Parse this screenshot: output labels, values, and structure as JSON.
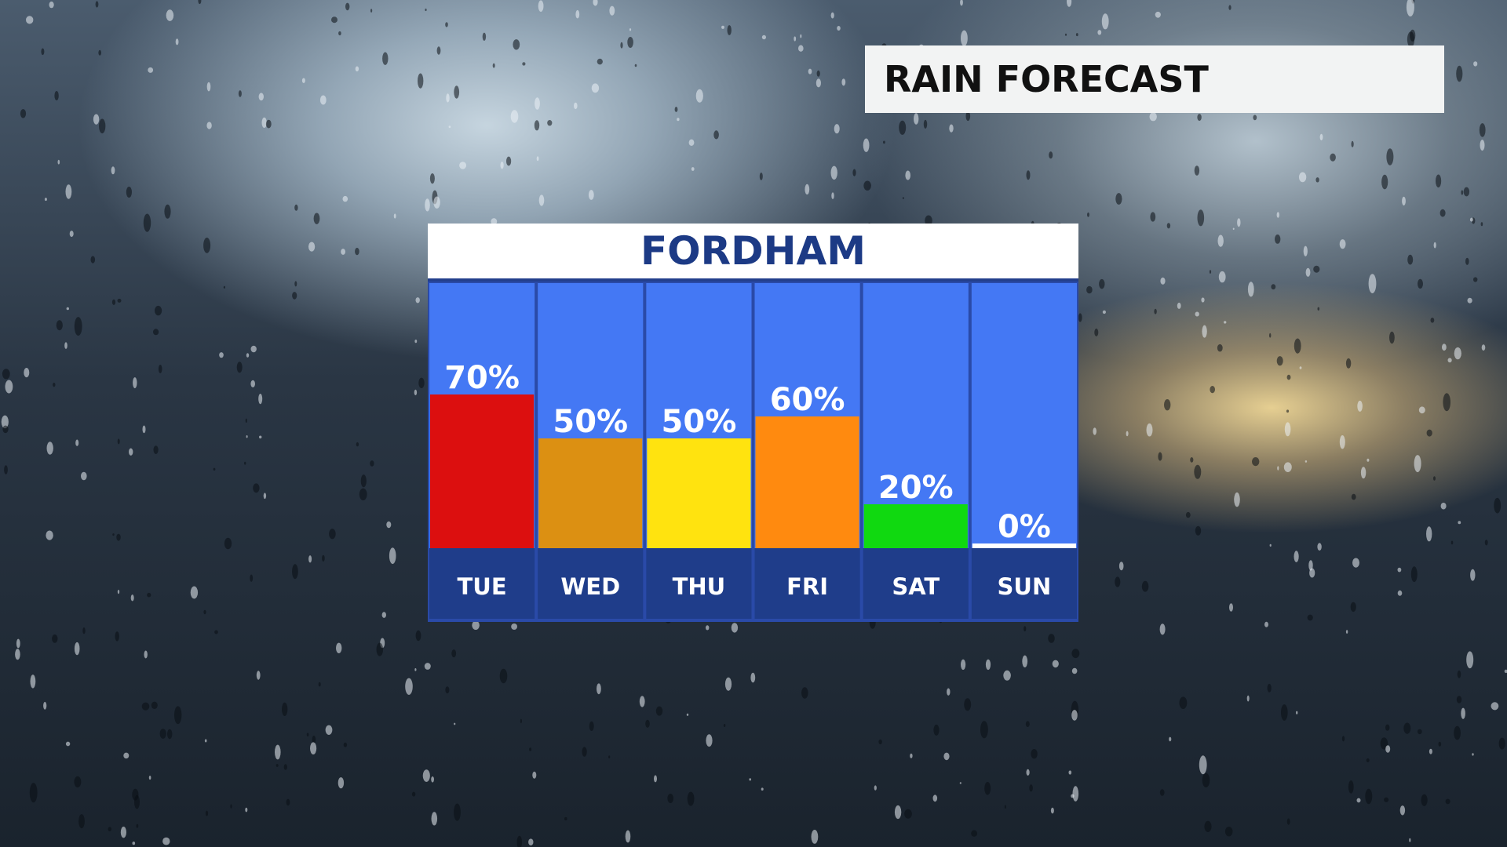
{
  "header": {
    "banner_text": "RAIN FORECAST"
  },
  "panel": {
    "title": "FORDHAM"
  },
  "colors": {
    "column_bg": "#4478f4",
    "day_bg": "#1f3d8a",
    "column_border": "#2a4aa8",
    "title_color": "#1c3a85",
    "label_color": "#ffffff"
  },
  "chart_data": {
    "type": "bar",
    "title": "FORDHAM",
    "categories": [
      "TUE",
      "WED",
      "THU",
      "FRI",
      "SAT",
      "SUN"
    ],
    "values": [
      70,
      50,
      50,
      60,
      20,
      0
    ],
    "value_labels": [
      "70%",
      "50%",
      "50%",
      "60%",
      "20%",
      "0%"
    ],
    "bar_colors": [
      "#dc0f0f",
      "#dc9012",
      "#ffe30f",
      "#ff8a0f",
      "#10d910",
      "#ffffff"
    ],
    "unit": "%",
    "ylim": [
      0,
      100
    ],
    "grid": false,
    "legend": "none"
  }
}
